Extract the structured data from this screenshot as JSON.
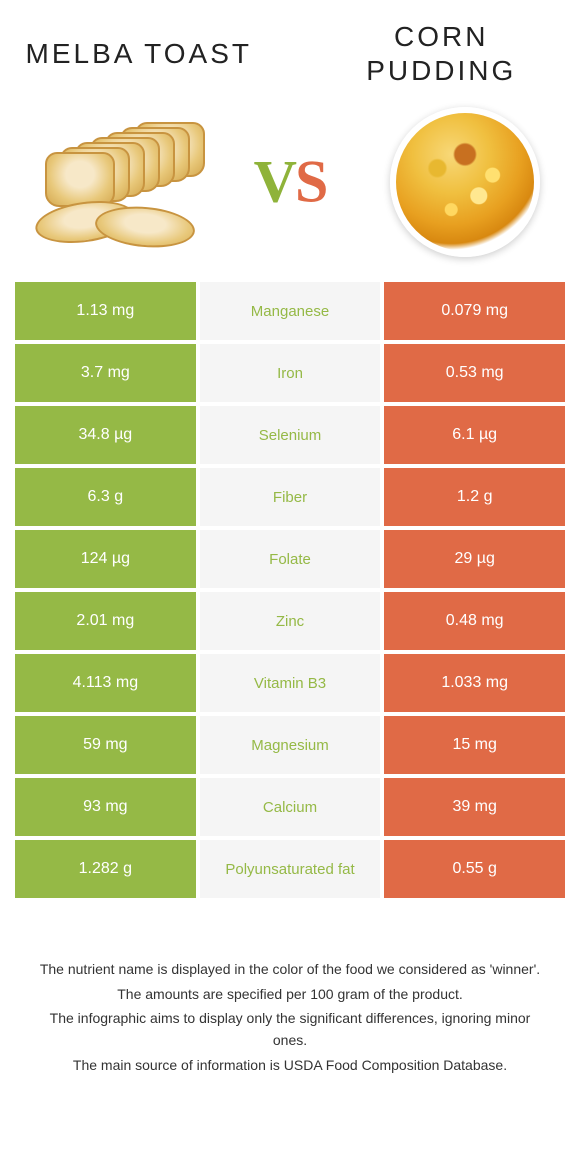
{
  "colors": {
    "left": "#95b946",
    "right": "#e06a46",
    "center_bg": "#f5f5f5"
  },
  "foods": {
    "left": {
      "name": "MELBA TOAST"
    },
    "right": {
      "name": "CORN PUDDING"
    }
  },
  "vs_label": {
    "v": "V",
    "s": "S"
  },
  "rows": [
    {
      "nutrient": "Manganese",
      "left": "1.13 mg",
      "right": "0.079 mg",
      "winner": "left"
    },
    {
      "nutrient": "Iron",
      "left": "3.7 mg",
      "right": "0.53 mg",
      "winner": "left"
    },
    {
      "nutrient": "Selenium",
      "left": "34.8 µg",
      "right": "6.1 µg",
      "winner": "left"
    },
    {
      "nutrient": "Fiber",
      "left": "6.3 g",
      "right": "1.2 g",
      "winner": "left"
    },
    {
      "nutrient": "Folate",
      "left": "124 µg",
      "right": "29 µg",
      "winner": "left"
    },
    {
      "nutrient": "Zinc",
      "left": "2.01 mg",
      "right": "0.48 mg",
      "winner": "left"
    },
    {
      "nutrient": "Vitamin B3",
      "left": "4.113 mg",
      "right": "1.033 mg",
      "winner": "left"
    },
    {
      "nutrient": "Magnesium",
      "left": "59 mg",
      "right": "15 mg",
      "winner": "left"
    },
    {
      "nutrient": "Calcium",
      "left": "93 mg",
      "right": "39 mg",
      "winner": "left"
    },
    {
      "nutrient": "Polyunsaturated fat",
      "left": "1.282 g",
      "right": "0.55 g",
      "winner": "left"
    }
  ],
  "footer": [
    "The nutrient name is displayed in the color of the food we considered as 'winner'.",
    "The amounts are specified per 100 gram of the product.",
    "The infographic aims to display only the significant differences, ignoring minor ones.",
    "The main source of information is USDA Food Composition Database."
  ]
}
